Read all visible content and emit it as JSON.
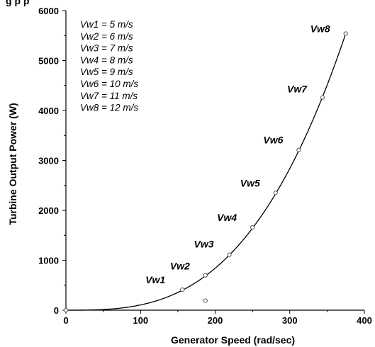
{
  "header_fragment": "g                                                                                  p p",
  "chart_data": {
    "type": "scatter",
    "xlabel": "Generator Speed (rad/sec)",
    "ylabel": "Turbine Output Power (W)",
    "xlim": [
      0,
      400
    ],
    "ylim": [
      0,
      6000
    ],
    "x_ticks": [
      "0",
      "100",
      "200",
      "300",
      "400"
    ],
    "y_ticks": [
      "0",
      "1000",
      "2000",
      "3000",
      "4000",
      "5000",
      "6000"
    ],
    "grid": false,
    "legend_placement": "top-left",
    "legend_entries": [
      "Vw1 = 5 m/s",
      "Vw2 = 6 m/s",
      "Vw3 = 7 m/s",
      "Vw4 = 8 m/s",
      "Vw5 = 9 m/s",
      "Vw6 = 10 m/s",
      "Vw7 = 11 m/s",
      "Vw8 = 12 m/s"
    ],
    "points": [
      {
        "label": "Vw1",
        "x": 156,
        "y": 410
      },
      {
        "label": "Vw2",
        "x": 187,
        "y": 700
      },
      {
        "label": "Vw3",
        "x": 219,
        "y": 1110
      },
      {
        "label": "Vw4",
        "x": 250,
        "y": 1660
      },
      {
        "label": "Vw5",
        "x": 281,
        "y": 2350
      },
      {
        "label": "Vw6",
        "x": 312,
        "y": 3210
      },
      {
        "label": "Vw7",
        "x": 344,
        "y": 4260
      },
      {
        "label": "Vw8",
        "x": 375,
        "y": 5540
      }
    ],
    "extra_points": [
      {
        "x": 0,
        "y": 0
      },
      {
        "x": 187,
        "y": 190
      }
    ],
    "curve": {
      "type": "cubic",
      "through": [
        375,
        5540
      ]
    }
  }
}
